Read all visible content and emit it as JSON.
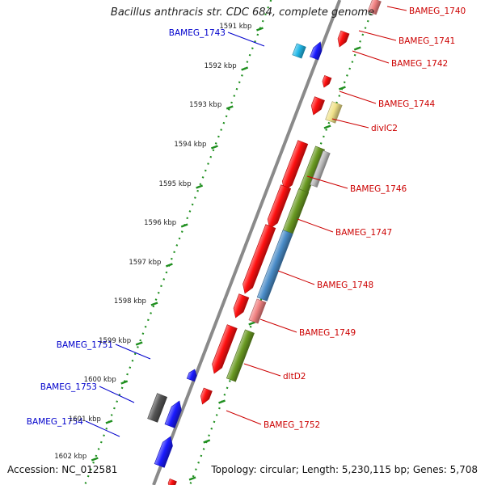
{
  "title": "Bacillus anthracis str. CDC 684, complete genome",
  "footer": {
    "accession": "Accession: NC_012581",
    "topology": "Topology: circular; Length: 5,230,115 bp; Genes: 5,708"
  },
  "colors": {
    "forward_label": "#cc0000",
    "reverse_label": "#0000cc",
    "backbone": "#8a8a8a",
    "tick": "#1f8f1f",
    "red_gene": "#ff1010",
    "pink_gene": "#f08080",
    "blue_gene": "#1a1aff",
    "cyan_gene": "#22b8e8",
    "yellow_gene": "#f0e28a",
    "olive_gene": "#6a9a22",
    "steel_gene": "#4a8cc8",
    "gray_gene": "#555555",
    "silver_gene": "#bbbbbb"
  },
  "scale_labels": [
    "1591 kbp",
    "1592 kbp",
    "1593 kbp",
    "1594 kbp",
    "1595 kbp",
    "1596 kbp",
    "1597 kbp",
    "1598 kbp",
    "1599 kbp",
    "1600 kbp",
    "1601 kbp",
    "1602 kbp"
  ],
  "forward_labels": [
    "BAMEG_1740",
    "BAMEG_1741",
    "BAMEG_1742",
    "BAMEG_1744",
    "divIC2",
    "BAMEG_1746",
    "BAMEG_1747",
    "BAMEG_1748",
    "BAMEG_1749",
    "dltD2",
    "BAMEG_1752"
  ],
  "reverse_labels": [
    "BAMEG_1743",
    "BAMEG_1751",
    "BAMEG_1753",
    "BAMEG_1754"
  ]
}
